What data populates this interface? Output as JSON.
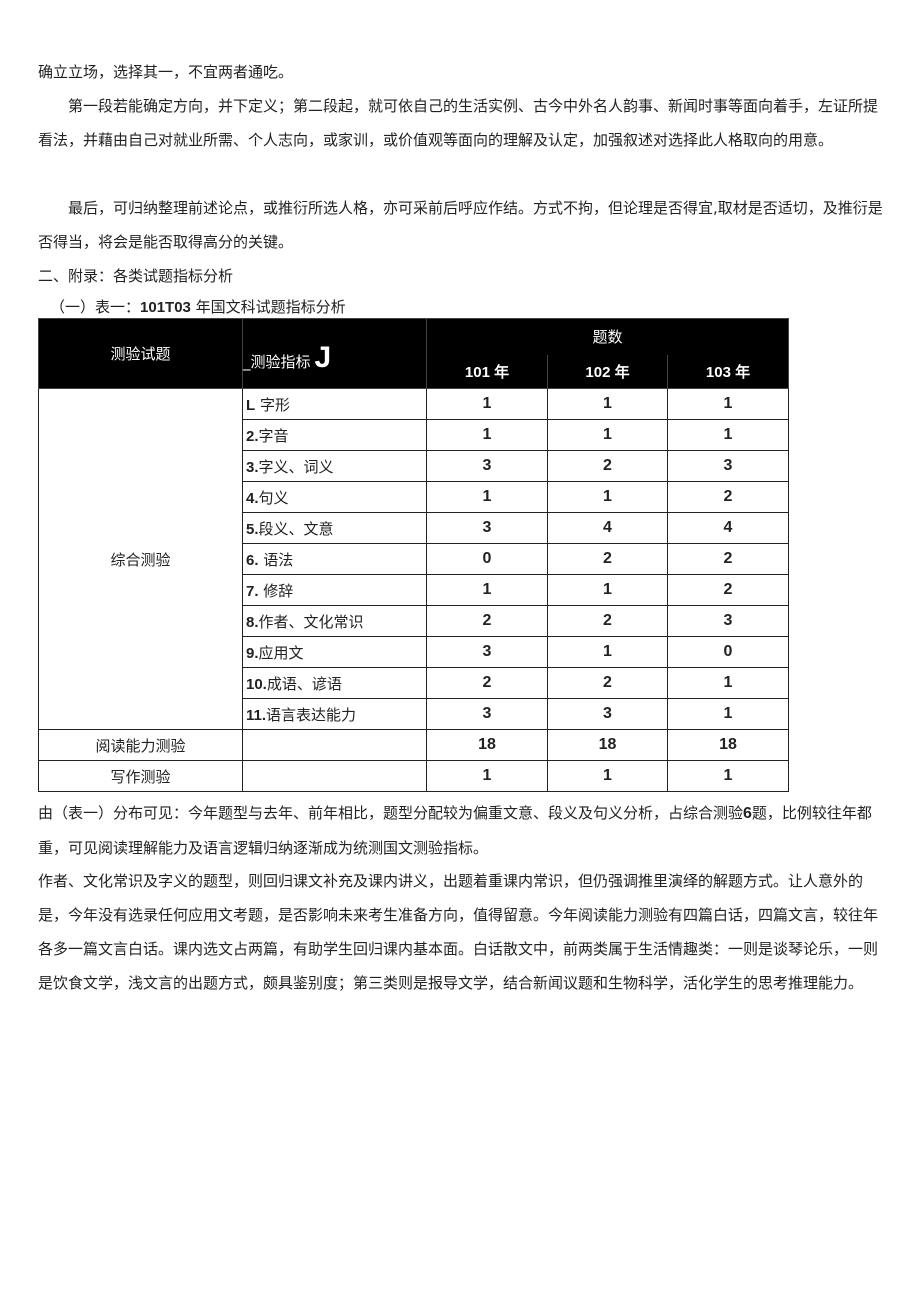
{
  "paragraphs": [
    "确立立场，选择其一，不宜两者通吃。",
    "第一段若能确定方向，并下定义；第二段起，就可依自己的生活实例、古今中外名人韵事、新闻时事等面向着手，左证所提看法，并藉由自己对就业所需、个人志向，或家训，或价值观等面向的理解及认定，加强叙述对选择此人格取向的用意。",
    "最后，可归纳整理前述论点，或推衍所选人格，亦可采前后呼应作结。方式不拘，但论理是否得宜,取材是否适切，及推衍是否得当，将会是能否取得高分的关键。"
  ],
  "section_heading": "二、附录：各类试题指标分析",
  "table_caption": {
    "prefix": "（一）表一：",
    "bold": "101T03",
    "suffix": " 年国文科试题指标分析"
  },
  "table": {
    "headers": {
      "test": "测验试题",
      "indicator": "_测验指标",
      "indicator_mark": "J",
      "count": "题数",
      "years": [
        "101 年",
        "102 年",
        "103 年"
      ]
    },
    "groups": [
      {
        "name": "综合测验",
        "rows": [
          {
            "num": "L",
            "text": " 字形",
            "v": [
              "1",
              "1",
              "1"
            ]
          },
          {
            "num": "2.",
            "text": "字音",
            "v": [
              "1",
              "1",
              "1"
            ]
          },
          {
            "num": "3.",
            "text": "字义、词义",
            "v": [
              "3",
              "2",
              "3"
            ]
          },
          {
            "num": "4.",
            "text": "句义",
            "v": [
              "1",
              "1",
              "2"
            ]
          },
          {
            "num": "5.",
            "text": "段义、文意",
            "v": [
              "3",
              "4",
              "4"
            ]
          },
          {
            "num": "6.",
            "text": " 语法",
            "v": [
              "0",
              "2",
              "2"
            ]
          },
          {
            "num": "7.",
            "text": " 修辞",
            "v": [
              "1",
              "1",
              "2"
            ]
          },
          {
            "num": "8.",
            "text": "作者、文化常识",
            "v": [
              "2",
              "2",
              "3"
            ]
          },
          {
            "num": "9.",
            "text": "应用文",
            "v": [
              "3",
              "1",
              "0"
            ]
          },
          {
            "num": "10.",
            "text": "成语、谚语",
            "v": [
              "2",
              "2",
              "1"
            ]
          },
          {
            "num": "11.",
            "text": "语言表达能力",
            "v": [
              "3",
              "3",
              "1"
            ]
          }
        ]
      },
      {
        "name": "阅读能力测验",
        "rows": [
          {
            "num": "",
            "text": "",
            "v": [
              "18",
              "18",
              "18"
            ]
          }
        ]
      },
      {
        "name": "写作测验",
        "rows": [
          {
            "num": "",
            "text": "",
            "v": [
              "1",
              "1",
              "1"
            ]
          }
        ]
      }
    ]
  },
  "analysis": [
    {
      "a": "由（表一）分布可见：今年题型与去年、前年相比，题型分配较为偏重文意、段义及句义分析，占综合测验",
      "bold": "6",
      "b": "题，比例较往年都重，可见阅读理解能力及语言逻辑归纳逐渐成为统测国文测验指标。"
    },
    {
      "a": "作者、文化常识及字义的题型，则回归课文补充及课内讲义，出题着重课内常识，但仍强调推里演绎的解题方式。让人意外的是，今年没有选录任何应用文考题，是否影响未来考生准备方向，值得留意。今年阅读能力测验有四篇白话，四篇文言，较往年各多一篇文言白话。课内选文占两篇，有助学生回归课内基本面。白话散文中，前两类属于生活情趣类：一则是谈琴论乐，一则是饮食文学，浅文言的出题方式，颇具鉴别度；第三类则是报导文学，结合新闻议题和生物科学，活化学生的思考推理能力。",
      "bold": "",
      "b": ""
    }
  ]
}
